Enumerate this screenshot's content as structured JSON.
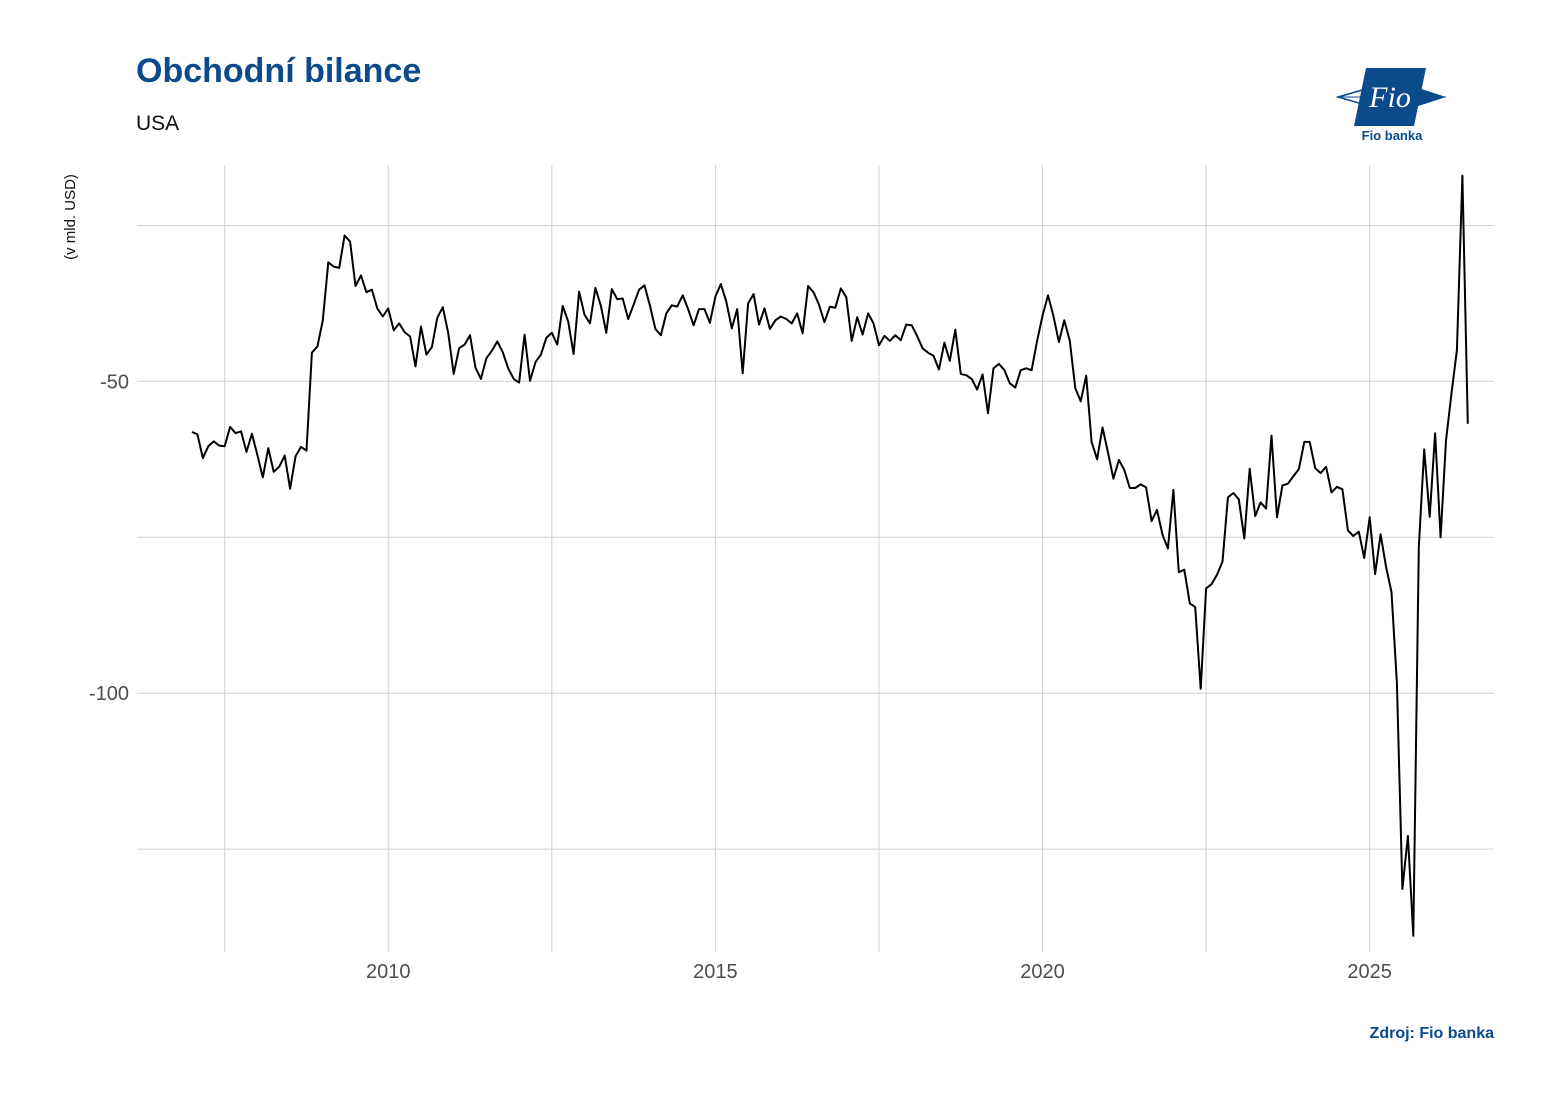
{
  "header": {
    "title": "Obchodní bilance",
    "subtitle": "USA"
  },
  "logo": {
    "text": "Fio banka",
    "mark_text": "Fio",
    "color": "#0b4a8b"
  },
  "footer": {
    "source": "Zdroj: Fio banka"
  },
  "colors": {
    "brand": "#0b4a8b",
    "line": "#000000",
    "grid": "#d0d0d0"
  },
  "chart_data": {
    "type": "line",
    "title": "Obchodní bilance",
    "subtitle": "USA",
    "xlabel": "",
    "ylabel": "(v mld. USD)",
    "xlim": [
      2006.16,
      2026.9
    ],
    "ylim": [
      -141.5,
      -15.3
    ],
    "x_ticks": [
      2010,
      2015,
      2020,
      2025
    ],
    "x_minor_ticks": [
      2007.5,
      2012.5,
      2017.5,
      2022.5
    ],
    "y_ticks": [
      -50,
      -100
    ],
    "y_minor_ticks": [
      -25,
      -75,
      -125
    ],
    "grid": true,
    "series": [
      {
        "start": 2007.0,
        "step": 0.0833333,
        "values": [
          -58.1,
          -58.5,
          -62.3,
          -60.4,
          -59.6,
          -60.3,
          -60.4,
          -57.3,
          -58.3,
          -58.0,
          -61.3,
          -58.4,
          -61.8,
          -65.4,
          -60.7,
          -64.5,
          -63.7,
          -61.9,
          -67.2,
          -62.0,
          -60.5,
          -61.1,
          -45.4,
          -44.4,
          -40.2,
          -30.9,
          -31.6,
          -31.8,
          -26.6,
          -27.6,
          -34.7,
          -33.0,
          -35.7,
          -35.3,
          -38.3,
          -39.6,
          -38.3,
          -41.8,
          -40.7,
          -42.1,
          -42.8,
          -47.6,
          -41.2,
          -45.7,
          -44.5,
          -39.8,
          -38.1,
          -42.2,
          -48.8,
          -44.7,
          -44.1,
          -42.6,
          -47.8,
          -49.6,
          -46.3,
          -45.1,
          -43.6,
          -45.3,
          -47.9,
          -49.6,
          -50.2,
          -42.5,
          -49.9,
          -46.9,
          -45.7,
          -43.0,
          -42.2,
          -44.1,
          -37.9,
          -40.4,
          -45.6,
          -35.6,
          -39.3,
          -40.7,
          -35.0,
          -37.9,
          -42.2,
          -35.2,
          -36.8,
          -36.7,
          -40.0,
          -37.7,
          -35.3,
          -34.6,
          -37.9,
          -41.6,
          -42.6,
          -39.1,
          -37.8,
          -38.0,
          -36.2,
          -38.4,
          -41.0,
          -38.4,
          -38.4,
          -40.6,
          -36.4,
          -34.4,
          -37.2,
          -41.5,
          -38.4,
          -48.7,
          -37.5,
          -36.0,
          -40.9,
          -38.3,
          -41.6,
          -40.2,
          -39.6,
          -40.0,
          -40.7,
          -39.1,
          -42.3,
          -34.7,
          -35.7,
          -37.7,
          -40.5,
          -38.0,
          -38.2,
          -35.1,
          -36.5,
          -43.5,
          -39.7,
          -42.5,
          -39.1,
          -40.7,
          -44.2,
          -42.7,
          -43.5,
          -42.6,
          -43.4,
          -40.9,
          -41.0,
          -42.7,
          -44.7,
          -45.4,
          -45.9,
          -48.1,
          -43.8,
          -46.7,
          -41.7,
          -48.8,
          -49.0,
          -49.6,
          -51.3,
          -48.9,
          -55.1,
          -47.9,
          -47.2,
          -48.2,
          -50.3,
          -51.0,
          -48.2,
          -47.9,
          -48.2,
          -43.5,
          -39.5,
          -36.2,
          -39.5,
          -43.7,
          -40.2,
          -43.5,
          -51.1,
          -53.2,
          -49.1,
          -59.7,
          -62.5,
          -57.4,
          -61.4,
          -65.6,
          -62.6,
          -64.2,
          -67.1,
          -67.1,
          -66.5,
          -67.0,
          -72.4,
          -70.6,
          -74.6,
          -76.8,
          -67.4,
          -80.6,
          -80.2,
          -85.6,
          -86.2,
          -99.3,
          -83.2,
          -82.5,
          -81.0,
          -78.9,
          -68.6,
          -67.9,
          -68.9,
          -75.2,
          -64.0,
          -71.6,
          -69.4,
          -70.4,
          -58.7,
          -71.8,
          -66.7,
          -66.4,
          -65.2,
          -64.1,
          -59.7,
          -59.7,
          -63.9,
          -64.7,
          -63.7,
          -67.8,
          -66.9,
          -67.3,
          -73.9,
          -74.8,
          -74.1,
          -78.3,
          -71.8,
          -80.9,
          -74.5,
          -79.7,
          -83.8,
          -98.4,
          -131.4,
          -122.9,
          -138.9,
          -76.6,
          -60.9,
          -71.7,
          -58.3,
          -75.0,
          -59.5,
          -51.9,
          -45.0,
          -17.0,
          -56.8
        ]
      }
    ]
  }
}
